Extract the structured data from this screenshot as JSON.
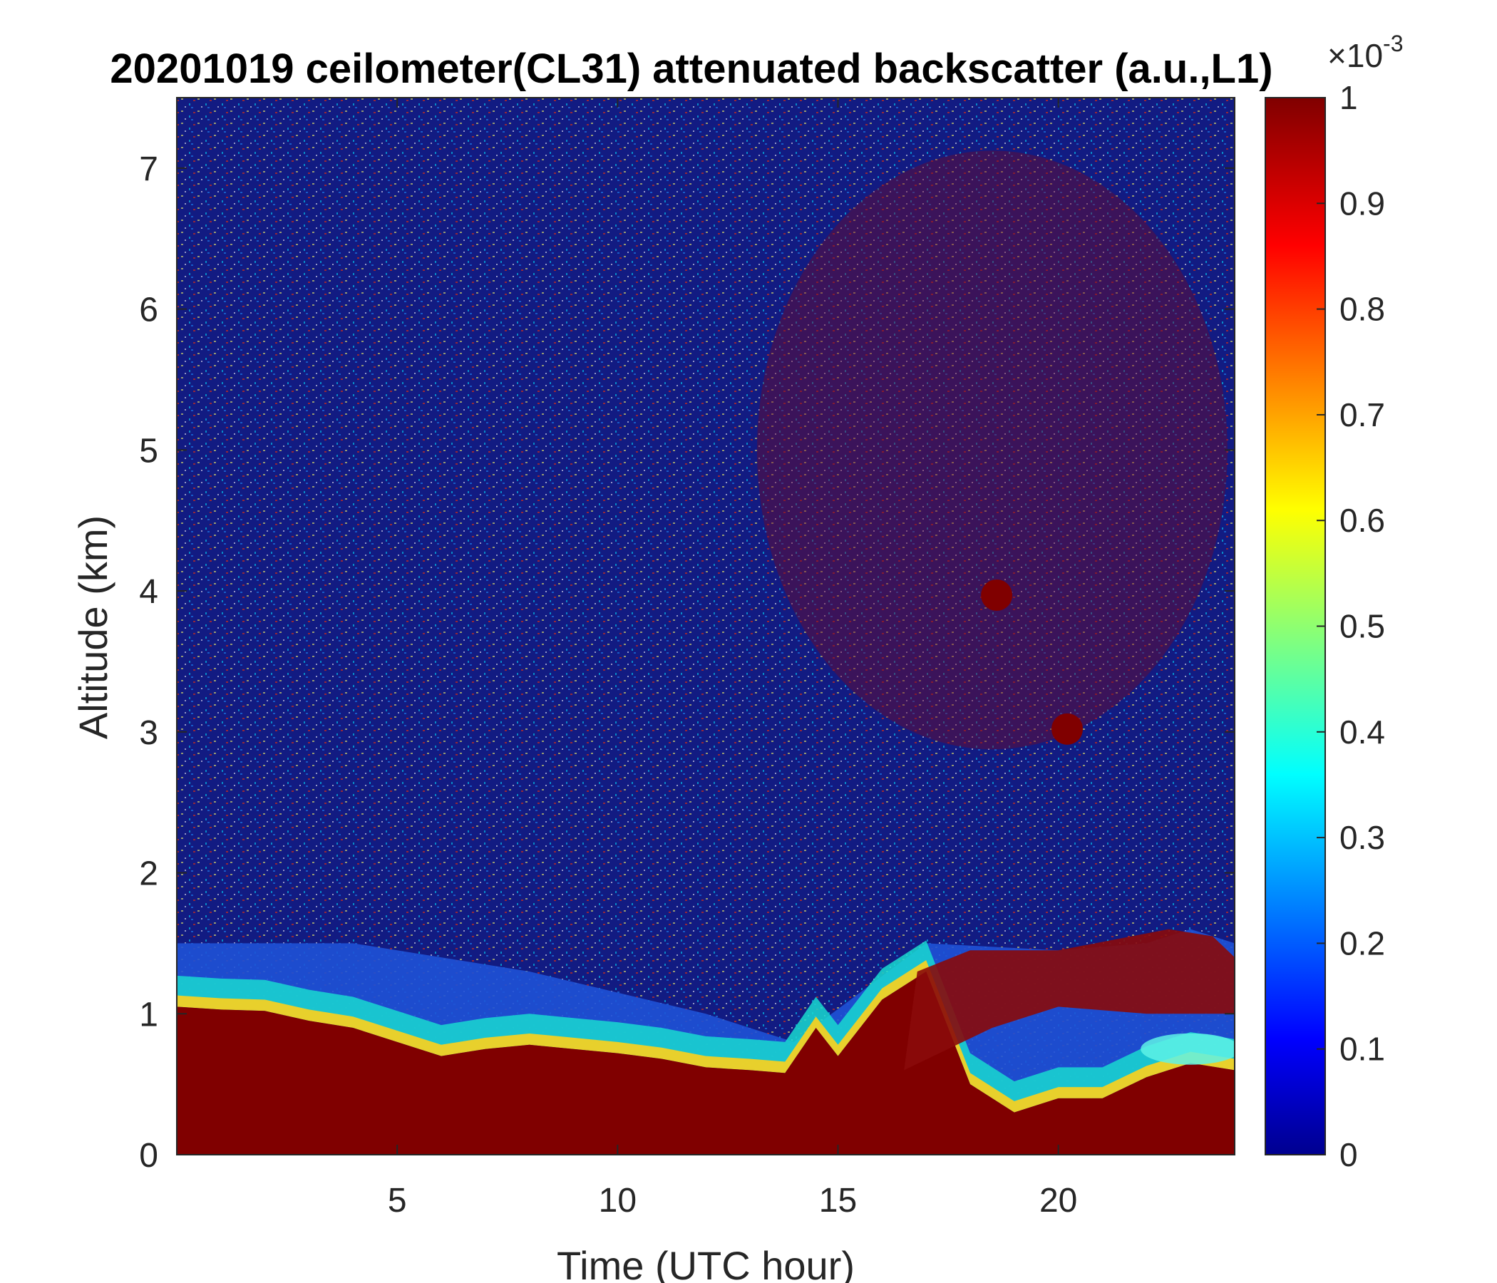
{
  "chart_data": {
    "type": "heatmap",
    "title": "20201019 ceilometer(CL31) attenuated backscatter (a.u.,L1)",
    "xlabel": "Time (UTC hour)",
    "ylabel": "Altitude (km)",
    "xlim": [
      0,
      24
    ],
    "ylim": [
      0,
      7.5
    ],
    "xticks": [
      5,
      10,
      15,
      20
    ],
    "xtick_labels": [
      "5",
      "10",
      "15",
      "20"
    ],
    "yticks": [
      0,
      1,
      2,
      3,
      4,
      5,
      6,
      7
    ],
    "ytick_labels": [
      "0",
      "1",
      "2",
      "3",
      "4",
      "5",
      "6",
      "7"
    ],
    "colormap": "jet",
    "colorbar": {
      "range": [
        0,
        1
      ],
      "ticks": [
        0,
        0.1,
        0.2,
        0.3,
        0.4,
        0.5,
        0.6,
        0.7,
        0.8,
        0.9,
        1
      ],
      "tick_labels": [
        "0",
        "0.1",
        "0.2",
        "0.3",
        "0.4",
        "0.5",
        "0.6",
        "0.7",
        "0.8",
        "0.9",
        "1"
      ],
      "multiplier_base": "×10",
      "multiplier_exponent": "-3"
    },
    "boundary_layer_top_km": {
      "x": [
        0,
        1,
        2,
        3,
        4,
        5,
        6,
        7,
        8,
        9,
        10,
        11,
        12,
        13,
        13.8,
        14.5,
        15,
        16,
        17,
        18,
        19,
        20,
        21,
        22,
        23,
        24
      ],
      "y": [
        1.05,
        1.03,
        1.02,
        0.95,
        0.9,
        0.8,
        0.7,
        0.75,
        0.78,
        0.75,
        0.72,
        0.68,
        0.62,
        0.6,
        0.58,
        0.9,
        0.7,
        1.1,
        1.3,
        0.5,
        0.3,
        0.4,
        0.4,
        0.55,
        0.65,
        0.6
      ]
    },
    "aerosol_layer_top_km": {
      "x": [
        0,
        4,
        8,
        12,
        14,
        17,
        20,
        22,
        23,
        24
      ],
      "y": [
        1.5,
        1.5,
        1.3,
        1.0,
        0.8,
        1.5,
        1.45,
        1.5,
        1.6,
        1.5
      ]
    },
    "cloud_spots": [
      {
        "x": 18.6,
        "y": 3.97
      },
      {
        "x": 20.2,
        "y": 3.02
      }
    ]
  }
}
